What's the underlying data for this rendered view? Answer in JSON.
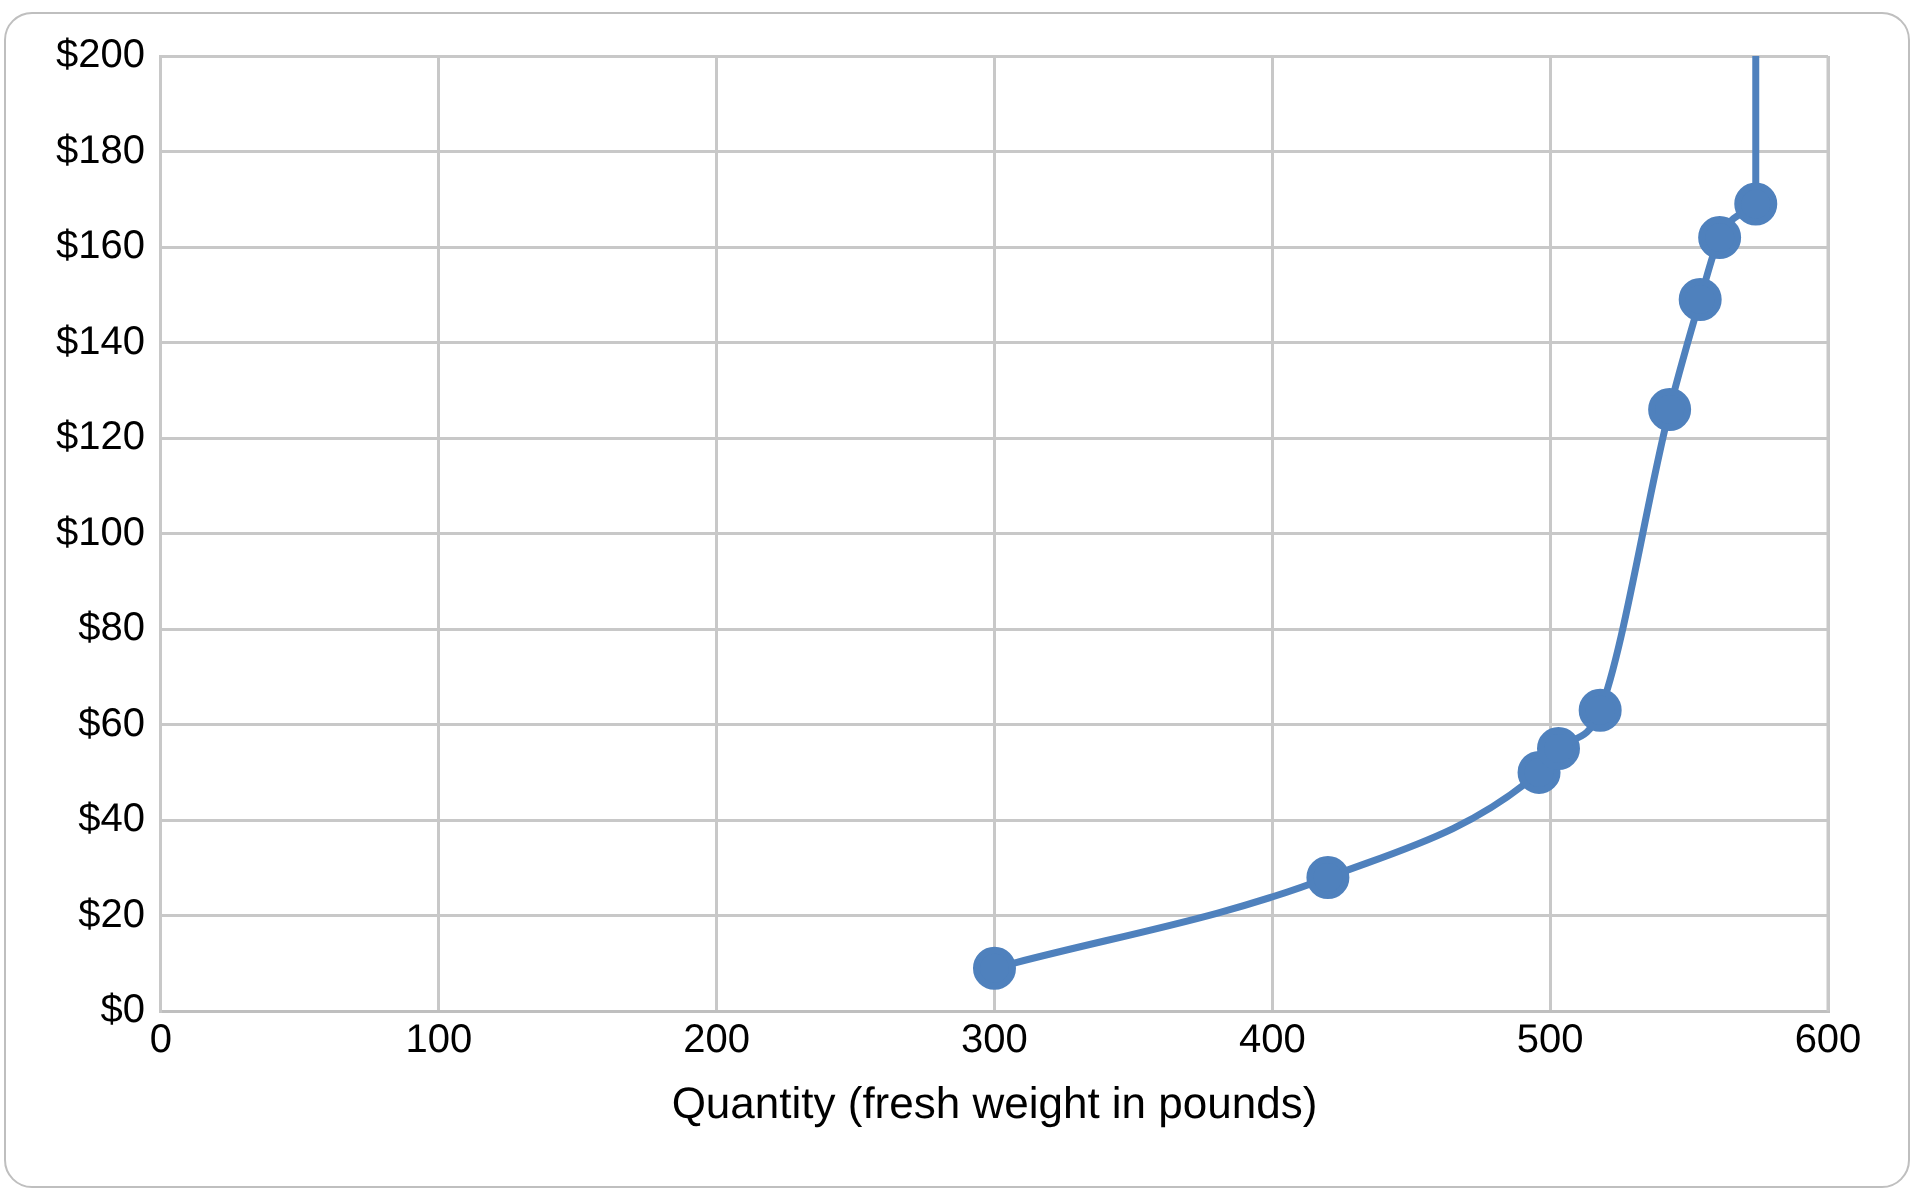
{
  "chart_data": {
    "type": "line",
    "xlabel": "Quantity (fresh weight in pounds)",
    "xlim": [
      0,
      600
    ],
    "xticks": [
      0,
      100,
      200,
      300,
      400,
      500,
      600
    ],
    "ylim": [
      0,
      200
    ],
    "yticks": [
      {
        "value": 0,
        "label": "$0"
      },
      {
        "value": 20,
        "label": "$20"
      },
      {
        "value": 40,
        "label": "$40"
      },
      {
        "value": 60,
        "label": "$60"
      },
      {
        "value": 80,
        "label": "$80"
      },
      {
        "value": 100,
        "label": "$100"
      },
      {
        "value": 120,
        "label": "$120"
      },
      {
        "value": 140,
        "label": "$140"
      },
      {
        "value": 160,
        "label": "$160"
      },
      {
        "value": 180,
        "label": "$180"
      },
      {
        "value": 200,
        "label": "$200"
      }
    ],
    "grid": true,
    "legend": false,
    "series": [
      {
        "color": "#4f81bd",
        "marker": "circle",
        "x": [
          300,
          420,
          496,
          503,
          518,
          543,
          554,
          561,
          574
        ],
        "values": [
          9,
          28,
          50,
          55,
          63,
          126,
          149,
          162,
          169
        ]
      },
      {
        "color": "#4f81bd",
        "marker": "none",
        "x": [
          574,
          574
        ],
        "values": [
          169,
          200
        ]
      }
    ]
  }
}
